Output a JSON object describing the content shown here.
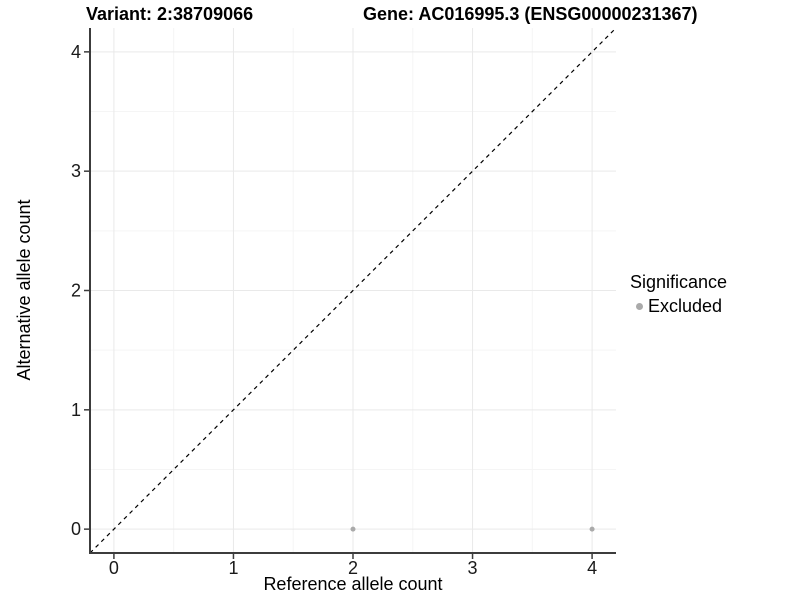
{
  "chart_data": {
    "type": "scatter",
    "title_left": "Variant: 2:38709066",
    "title_right": "Gene: AC016995.3 (ENSG00000231367)",
    "xlabel": "Reference allele count",
    "ylabel": "Alternative allele count",
    "xlim": [
      -0.2,
      4.2
    ],
    "ylim": [
      -0.2,
      4.2
    ],
    "x_ticks": [
      0,
      1,
      2,
      3,
      4
    ],
    "y_ticks": [
      0,
      1,
      2,
      3,
      4
    ],
    "x_tick_labels": [
      "0",
      "1",
      "2",
      "3",
      "4"
    ],
    "y_tick_labels": [
      "0",
      "1",
      "2",
      "3",
      "4"
    ],
    "x_minor_ticks": [
      0.5,
      1.5,
      2.5,
      3.5
    ],
    "y_minor_ticks": [
      0.5,
      1.5,
      2.5,
      3.5
    ],
    "grid": "major+minor",
    "reference_line": {
      "shape": "identity-diagonal",
      "style": "dashed",
      "color": "#000000",
      "from": [
        -0.2,
        -0.2
      ],
      "to": [
        4.2,
        4.2
      ]
    },
    "series": [
      {
        "name": "Excluded",
        "color": "#aaaaaa",
        "points": [
          {
            "x": 2,
            "y": 0
          },
          {
            "x": 4,
            "y": 0
          }
        ]
      }
    ],
    "legend": {
      "title": "Significance",
      "position": "right-center",
      "items": [
        {
          "label": "Excluded",
          "color": "#aaaaaa"
        }
      ]
    },
    "colors": {
      "background": "#ffffff",
      "grid_major": "#e9e9e9",
      "grid_minor": "#f5f5f5",
      "axis_line": "#3c3c3c",
      "tick_label": "#1a1a1a",
      "title": "#000000"
    }
  }
}
